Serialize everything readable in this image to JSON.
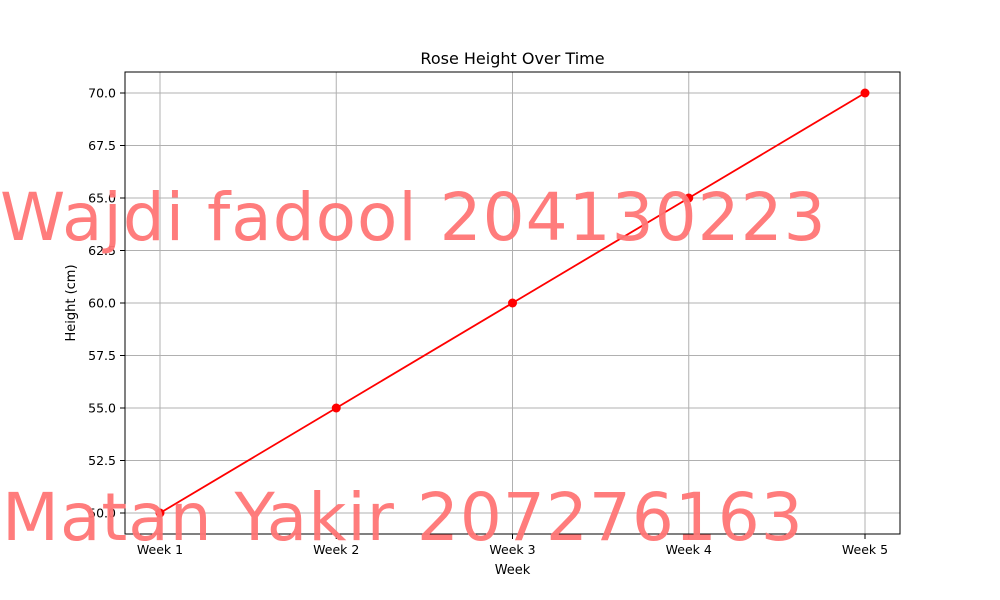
{
  "chart_data": {
    "type": "line",
    "title": "Rose Height Over Time",
    "xlabel": "Week",
    "ylabel": "Height (cm)",
    "categories": [
      "Week 1",
      "Week 2",
      "Week 3",
      "Week 4",
      "Week 5"
    ],
    "series": [
      {
        "values": [
          50,
          55,
          60,
          65,
          70
        ],
        "color": "#ff0000",
        "marker": "circle"
      }
    ],
    "ylim": [
      49,
      71
    ],
    "yticks": [
      50.0,
      52.5,
      55.0,
      57.5,
      60.0,
      62.5,
      65.0,
      67.5,
      70.0
    ],
    "ytick_labels": [
      "50.0",
      "52.5",
      "55.0",
      "57.5",
      "60.0",
      "62.5",
      "65.0",
      "67.5",
      "70.0"
    ],
    "grid": true
  },
  "watermarks": [
    "Wajdi fadool 204130223",
    "Matan Yakir 207276163"
  ]
}
